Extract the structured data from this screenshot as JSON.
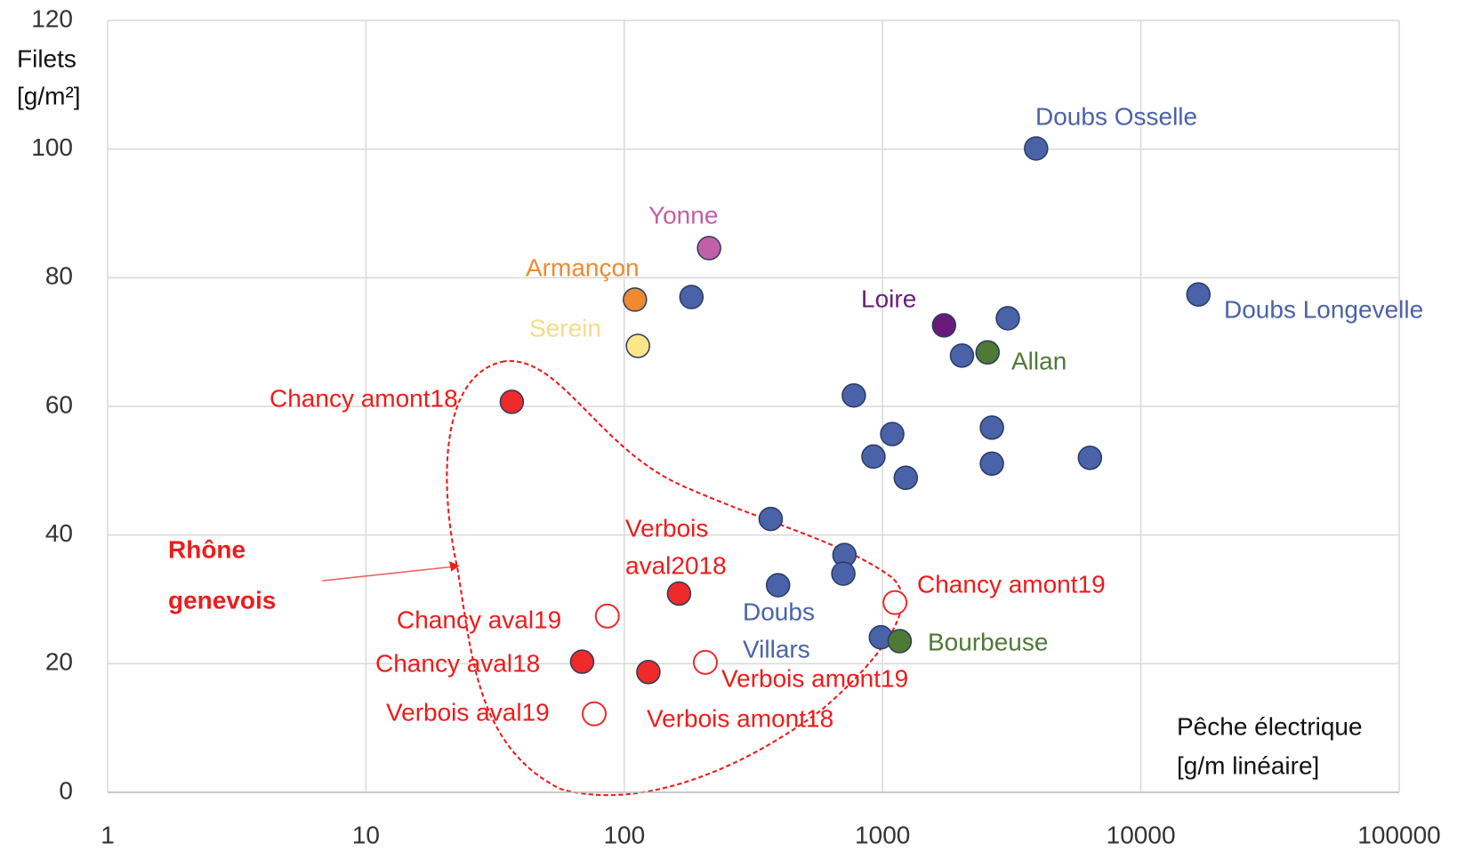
{
  "chart_data": {
    "type": "scatter",
    "x_label": [
      "Pêche électrique",
      "[g/m linéaire]"
    ],
    "y_label": [
      "Filets",
      "[g/m²]"
    ],
    "x_log": true,
    "xlim": [
      1,
      100000
    ],
    "xticks": [
      1,
      10,
      100,
      1000,
      10000,
      100000
    ],
    "ylim": [
      0,
      120
    ],
    "yticks": [
      0,
      20,
      40,
      60,
      80,
      100,
      120
    ],
    "grid": true,
    "series": [
      {
        "color": "#4a62a8",
        "open": false,
        "x": [
          3930,
          16700,
          182,
          3055,
          2030,
          774,
          1090,
          2650,
          922,
          6350,
          2650,
          1230,
          369,
          712,
          705,
          394,
          985
        ],
        "values": [
          100.1,
          77.4,
          77,
          73.7,
          67.9,
          61.7,
          55.7,
          56.7,
          52.2,
          52,
          51.1,
          48.9,
          42.5,
          36.9,
          34,
          32.2,
          24.1
        ]
      },
      {
        "color": "#c060a8",
        "open": false,
        "x": [
          213
        ],
        "values": [
          84.6
        ]
      },
      {
        "color": "#f08a30",
        "open": false,
        "x": [
          110
        ],
        "values": [
          76.6
        ]
      },
      {
        "color": "#fde58a",
        "open": false,
        "x": [
          113
        ],
        "values": [
          69.4
        ]
      },
      {
        "color": "#6a1b7a",
        "open": false,
        "x": [
          1730
        ],
        "values": [
          72.6
        ]
      },
      {
        "color": "#4e7a34",
        "open": false,
        "x": [
          2550,
          1165
        ],
        "values": [
          68.4,
          23.5
        ]
      },
      {
        "color": "#ee2a2a",
        "open": false,
        "x": [
          36.7,
          163,
          68.7,
          124
        ],
        "values": [
          60.7,
          30.9,
          20.3,
          18.7
        ]
      },
      {
        "color": "#ee2a2a",
        "open": true,
        "x": [
          86,
          76.5,
          206,
          1117
        ],
        "values": [
          27.4,
          12.2,
          20.2,
          29.5
        ]
      }
    ],
    "annotations": [
      {
        "text": "Doubs Osselle",
        "color": "#4a62a8"
      },
      {
        "text": "Doubs Longevelle",
        "color": "#4a62a8"
      },
      {
        "text": "Yonne",
        "color": "#c060a8"
      },
      {
        "text": "Armançon",
        "color": "#f08a30"
      },
      {
        "text": "Serein",
        "color": "#f5dc8a"
      },
      {
        "text": "Loire",
        "color": "#6a1b7a"
      },
      {
        "text": "Allan",
        "color": "#4e7a34"
      },
      {
        "text": "Chancy amont18",
        "color": "#ee1c1c"
      },
      {
        "text": "Verbois",
        "color": "#ee1c1c"
      },
      {
        "text": "aval2018",
        "color": "#ee1c1c"
      },
      {
        "text": "Chancy amont19",
        "color": "#ee1c1c"
      },
      {
        "text": "Doubs",
        "color": "#4a62a8"
      },
      {
        "text": "Villars",
        "color": "#4a62a8"
      },
      {
        "text": "Bourbeuse",
        "color": "#4e7a34"
      },
      {
        "text": "Chancy aval19",
        "color": "#ee1c1c"
      },
      {
        "text": "Chancy aval18",
        "color": "#ee1c1c"
      },
      {
        "text": "Verbois amont19",
        "color": "#ee1c1c"
      },
      {
        "text": "Verbois aval19",
        "color": "#ee1c1c"
      },
      {
        "text": "Verbois amont18",
        "color": "#ee1c1c"
      },
      {
        "text": "Rhône",
        "color": "#ee1c1c"
      },
      {
        "text": "genevois",
        "color": "#ee1c1c"
      }
    ]
  }
}
